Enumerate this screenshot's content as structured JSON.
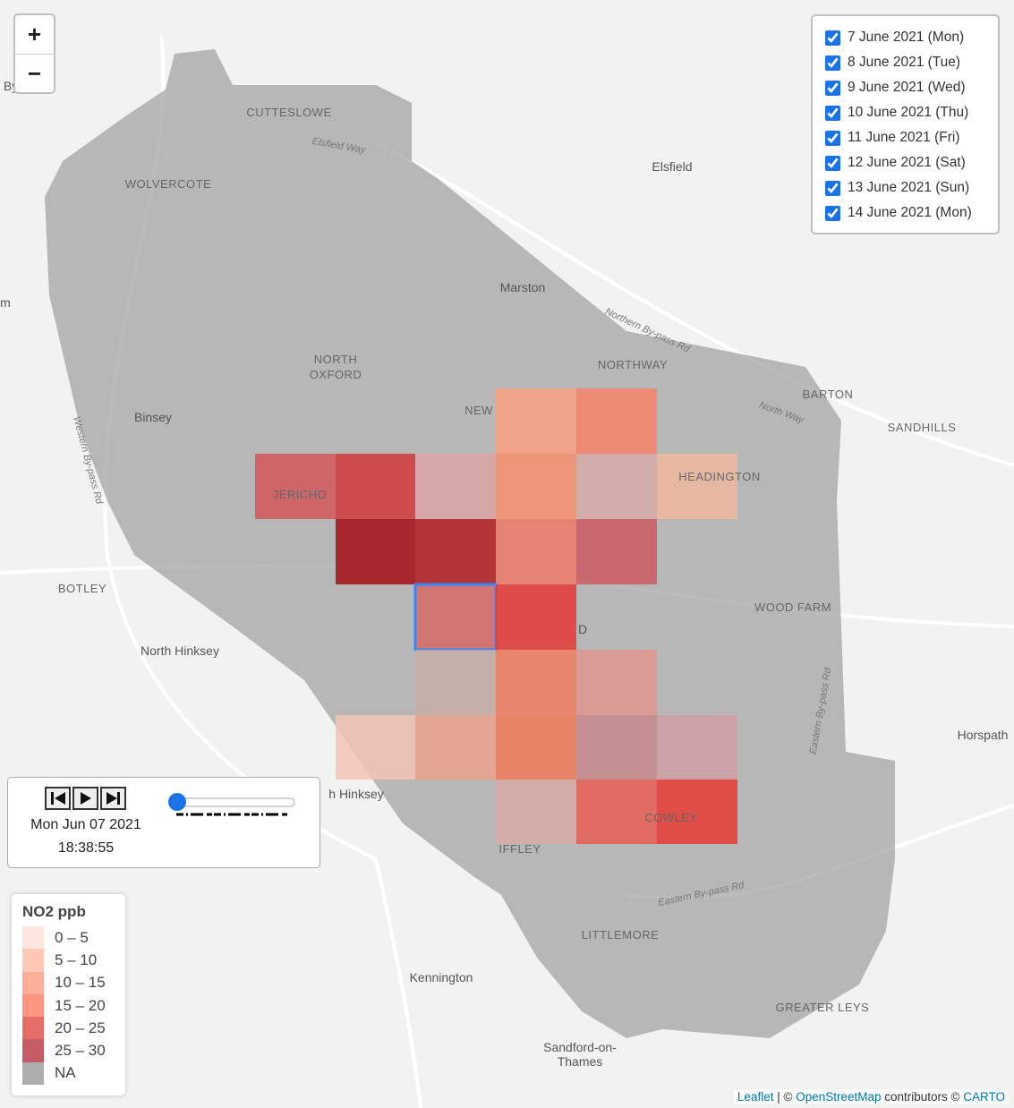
{
  "zoom": {
    "in": "+",
    "out": "−"
  },
  "layers": [
    "7 June 2021 (Mon)",
    "8 June 2021 (Tue)",
    "9 June 2021 (Wed)",
    "10 June 2021 (Thu)",
    "11 June 2021 (Fri)",
    "12 June 2021 (Sat)",
    "13 June 2021 (Sun)",
    "14 June 2021 (Mon)"
  ],
  "player": {
    "date": "Mon Jun 07 2021",
    "time": "18:38:55"
  },
  "legend": {
    "title": "NO2 ppb",
    "items": [
      {
        "label": "0 – 5",
        "color": "#fde0d8"
      },
      {
        "label": "5 – 10",
        "color": "#fcbba4"
      },
      {
        "label": "10 – 15",
        "color": "#fb9a80"
      },
      {
        "label": "15 – 20",
        "color": "#f77a62"
      },
      {
        "label": "20 – 25",
        "color": "#e04a44"
      },
      {
        "label": "25 – 30",
        "color": "#b8333e"
      },
      {
        "label": "NA",
        "color": "#999999"
      }
    ]
  },
  "places": [
    "CUTTESLOWE",
    "Elsfield Way",
    "WOLVERCOTE",
    "Elsfield",
    "Marston",
    "Northern By-pass Rd",
    "NORTH",
    "OXFORD",
    "NORTHWAY",
    "Binsey",
    "NEW",
    "BARTON",
    "North Way",
    "SANDHILLS",
    "JERICHO",
    "HEADINGTON",
    "Western By-pass Rd",
    "BOTLEY",
    "WOOD FARM",
    "North Hinksey",
    "Eastern By-pass Rd",
    "Horspath",
    "h Hinksey",
    "IFFLEY",
    "Eastern By-pass Rd",
    "LITTLEMORE",
    "Kennington",
    "GREATER LEYS",
    "Sandford-on-",
    "Thames",
    "COWLEY",
    "By",
    "m",
    "D"
  ],
  "attribution": {
    "leaflet": "Leaflet",
    "sep": " | © ",
    "osm": "OpenStreetMap",
    "mid": " contributors © ",
    "carto": "CARTO"
  }
}
